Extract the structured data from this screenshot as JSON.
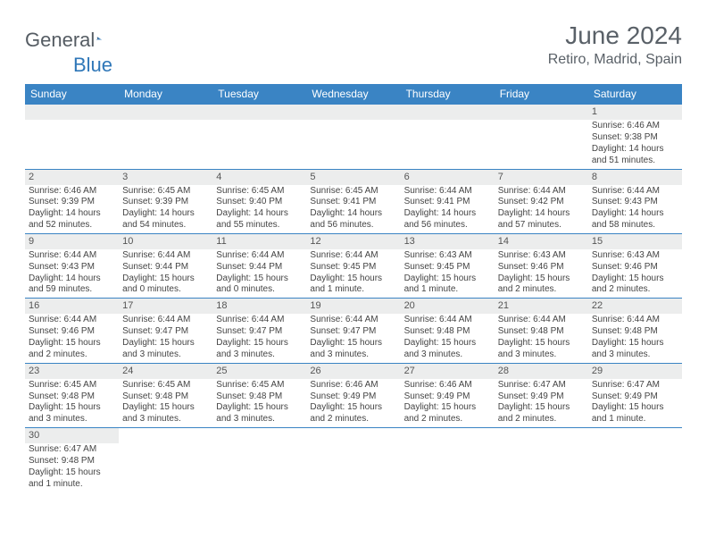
{
  "brand": {
    "first": "General",
    "second": "Blue"
  },
  "title": {
    "month": "June 2024",
    "location": "Retiro, Madrid, Spain"
  },
  "colors": {
    "header_bg": "#3a84c4",
    "header_text": "#ffffff",
    "daynum_bg": "#eceded",
    "rule": "#3a84c4",
    "text": "#4a4a4a",
    "title_text": "#5a6168",
    "brand_gray": "#555c63",
    "brand_blue": "#2f77b8",
    "page_bg": "#ffffff"
  },
  "typography": {
    "title_fontsize": 28,
    "location_fontsize": 16,
    "weekday_fontsize": 12,
    "daynum_fontsize": 11,
    "body_fontsize": 10
  },
  "calendar": {
    "weekdays": [
      "Sunday",
      "Monday",
      "Tuesday",
      "Wednesday",
      "Thursday",
      "Friday",
      "Saturday"
    ],
    "weeks": [
      [
        null,
        null,
        null,
        null,
        null,
        null,
        {
          "n": "1",
          "sunrise": "6:46 AM",
          "sunset": "9:38 PM",
          "daylight": "14 hours and 51 minutes."
        }
      ],
      [
        {
          "n": "2",
          "sunrise": "6:46 AM",
          "sunset": "9:39 PM",
          "daylight": "14 hours and 52 minutes."
        },
        {
          "n": "3",
          "sunrise": "6:45 AM",
          "sunset": "9:39 PM",
          "daylight": "14 hours and 54 minutes."
        },
        {
          "n": "4",
          "sunrise": "6:45 AM",
          "sunset": "9:40 PM",
          "daylight": "14 hours and 55 minutes."
        },
        {
          "n": "5",
          "sunrise": "6:45 AM",
          "sunset": "9:41 PM",
          "daylight": "14 hours and 56 minutes."
        },
        {
          "n": "6",
          "sunrise": "6:44 AM",
          "sunset": "9:41 PM",
          "daylight": "14 hours and 56 minutes."
        },
        {
          "n": "7",
          "sunrise": "6:44 AM",
          "sunset": "9:42 PM",
          "daylight": "14 hours and 57 minutes."
        },
        {
          "n": "8",
          "sunrise": "6:44 AM",
          "sunset": "9:43 PM",
          "daylight": "14 hours and 58 minutes."
        }
      ],
      [
        {
          "n": "9",
          "sunrise": "6:44 AM",
          "sunset": "9:43 PM",
          "daylight": "14 hours and 59 minutes."
        },
        {
          "n": "10",
          "sunrise": "6:44 AM",
          "sunset": "9:44 PM",
          "daylight": "15 hours and 0 minutes."
        },
        {
          "n": "11",
          "sunrise": "6:44 AM",
          "sunset": "9:44 PM",
          "daylight": "15 hours and 0 minutes."
        },
        {
          "n": "12",
          "sunrise": "6:44 AM",
          "sunset": "9:45 PM",
          "daylight": "15 hours and 1 minute."
        },
        {
          "n": "13",
          "sunrise": "6:43 AM",
          "sunset": "9:45 PM",
          "daylight": "15 hours and 1 minute."
        },
        {
          "n": "14",
          "sunrise": "6:43 AM",
          "sunset": "9:46 PM",
          "daylight": "15 hours and 2 minutes."
        },
        {
          "n": "15",
          "sunrise": "6:43 AM",
          "sunset": "9:46 PM",
          "daylight": "15 hours and 2 minutes."
        }
      ],
      [
        {
          "n": "16",
          "sunrise": "6:44 AM",
          "sunset": "9:46 PM",
          "daylight": "15 hours and 2 minutes."
        },
        {
          "n": "17",
          "sunrise": "6:44 AM",
          "sunset": "9:47 PM",
          "daylight": "15 hours and 3 minutes."
        },
        {
          "n": "18",
          "sunrise": "6:44 AM",
          "sunset": "9:47 PM",
          "daylight": "15 hours and 3 minutes."
        },
        {
          "n": "19",
          "sunrise": "6:44 AM",
          "sunset": "9:47 PM",
          "daylight": "15 hours and 3 minutes."
        },
        {
          "n": "20",
          "sunrise": "6:44 AM",
          "sunset": "9:48 PM",
          "daylight": "15 hours and 3 minutes."
        },
        {
          "n": "21",
          "sunrise": "6:44 AM",
          "sunset": "9:48 PM",
          "daylight": "15 hours and 3 minutes."
        },
        {
          "n": "22",
          "sunrise": "6:44 AM",
          "sunset": "9:48 PM",
          "daylight": "15 hours and 3 minutes."
        }
      ],
      [
        {
          "n": "23",
          "sunrise": "6:45 AM",
          "sunset": "9:48 PM",
          "daylight": "15 hours and 3 minutes."
        },
        {
          "n": "24",
          "sunrise": "6:45 AM",
          "sunset": "9:48 PM",
          "daylight": "15 hours and 3 minutes."
        },
        {
          "n": "25",
          "sunrise": "6:45 AM",
          "sunset": "9:48 PM",
          "daylight": "15 hours and 3 minutes."
        },
        {
          "n": "26",
          "sunrise": "6:46 AM",
          "sunset": "9:49 PM",
          "daylight": "15 hours and 2 minutes."
        },
        {
          "n": "27",
          "sunrise": "6:46 AM",
          "sunset": "9:49 PM",
          "daylight": "15 hours and 2 minutes."
        },
        {
          "n": "28",
          "sunrise": "6:47 AM",
          "sunset": "9:49 PM",
          "daylight": "15 hours and 2 minutes."
        },
        {
          "n": "29",
          "sunrise": "6:47 AM",
          "sunset": "9:49 PM",
          "daylight": "15 hours and 1 minute."
        }
      ],
      [
        {
          "n": "30",
          "sunrise": "6:47 AM",
          "sunset": "9:48 PM",
          "daylight": "15 hours and 1 minute."
        },
        null,
        null,
        null,
        null,
        null,
        null
      ]
    ],
    "labels": {
      "sunrise": "Sunrise:",
      "sunset": "Sunset:",
      "daylight": "Daylight:"
    }
  }
}
